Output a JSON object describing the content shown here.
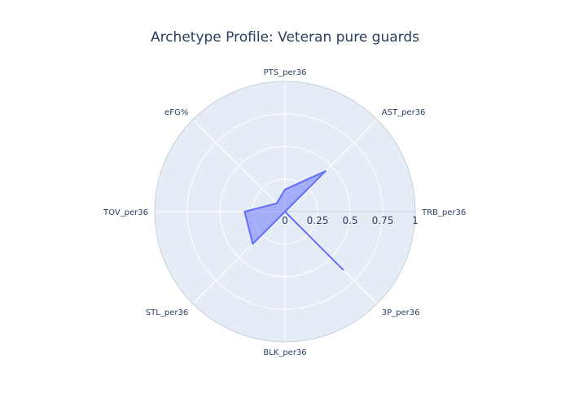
{
  "chart_data": {
    "type": "radar",
    "title": "Archetype Profile: Veteran pure guards",
    "axes": [
      "PTS_per36",
      "AST_per36",
      "TRB_per36",
      "3P_per36",
      "BLK_per36",
      "STL_per36",
      "TOV_per36",
      "eFG%"
    ],
    "radial_range": [
      0,
      1
    ],
    "radial_ticks": [
      "0",
      "0.25",
      "0.5",
      "0.75",
      "1"
    ],
    "series": [
      {
        "values": [
          0.17,
          0.44,
          0.0,
          0.63,
          0.0,
          0.35,
          0.31,
          0.09
        ]
      }
    ],
    "colors": {
      "line": "#636efa",
      "fill": "rgba(99,110,250,0.5)",
      "background": "#e5ecf6",
      "grid": "#ffffff"
    },
    "grid": true
  }
}
